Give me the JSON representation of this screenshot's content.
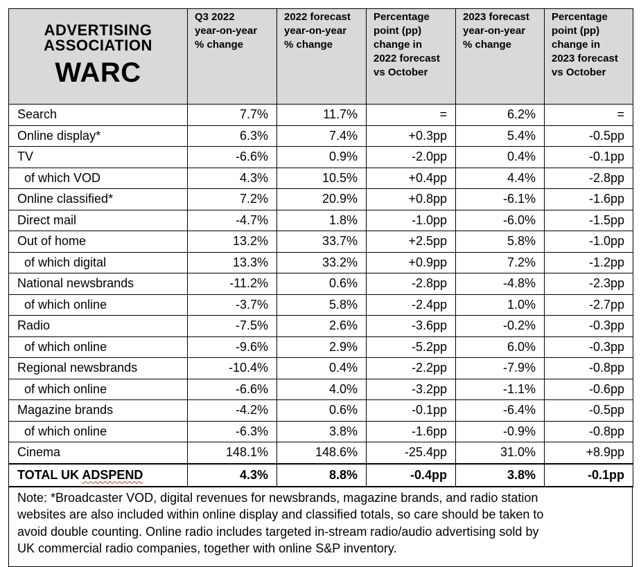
{
  "logo": {
    "line1": "ADVERTISING",
    "line2": "ASSOCIATION",
    "line3": "WARC"
  },
  "headers": [
    "Q3 2022 year-on-year % change",
    "2022 forecast year-on-year % change",
    "Percentage point (pp) change in 2022 forecast vs October",
    "2023 forecast year-on-year % change",
    "Percentage point (pp) change in 2023 forecast vs October"
  ],
  "header_lines": [
    [
      "Q3 2022",
      "year-on-year",
      "% change"
    ],
    [
      "2022 forecast",
      "year-on-year",
      "% change"
    ],
    [
      "Percentage",
      "point (pp)",
      "change in",
      "2022 forecast",
      "vs October"
    ],
    [
      "2023 forecast",
      "year-on-year",
      "% change"
    ],
    [
      "Percentage",
      "point (pp)",
      "change in",
      "2023 forecast",
      "vs October"
    ]
  ],
  "rows": [
    {
      "label": "Search",
      "sub": false,
      "values": [
        "7.7%",
        "11.7%",
        "=",
        "6.2%",
        "="
      ]
    },
    {
      "label": "Online display*",
      "sub": false,
      "values": [
        "6.3%",
        "7.4%",
        "+0.3pp",
        "5.4%",
        "-0.5pp"
      ]
    },
    {
      "label": "TV",
      "sub": false,
      "values": [
        "-6.6%",
        "0.9%",
        "-2.0pp",
        "0.4%",
        "-0.1pp"
      ]
    },
    {
      "label": "of which VOD",
      "sub": true,
      "values": [
        "4.3%",
        "10.5%",
        "+0.4pp",
        "4.4%",
        "-2.8pp"
      ]
    },
    {
      "label": "Online classified*",
      "sub": false,
      "values": [
        "7.2%",
        "20.9%",
        "+0.8pp",
        "-6.1%",
        "-1.6pp"
      ]
    },
    {
      "label": "Direct mail",
      "sub": false,
      "values": [
        "-4.7%",
        "1.8%",
        "-1.0pp",
        "-6.0%",
        "-1.5pp"
      ]
    },
    {
      "label": "Out of home",
      "sub": false,
      "values": [
        "13.2%",
        "33.7%",
        "+2.5pp",
        "5.8%",
        "-1.0pp"
      ]
    },
    {
      "label": "of which digital",
      "sub": true,
      "values": [
        "13.3%",
        "33.2%",
        "+0.9pp",
        "7.2%",
        "-1.2pp"
      ]
    },
    {
      "label": "National newsbrands",
      "sub": false,
      "values": [
        "-11.2%",
        "0.6%",
        "-2.8pp",
        "-4.8%",
        "-2.3pp"
      ]
    },
    {
      "label": "of which online",
      "sub": true,
      "values": [
        "-3.7%",
        "5.8%",
        "-2.4pp",
        "1.0%",
        "-2.7pp"
      ]
    },
    {
      "label": "Radio",
      "sub": false,
      "values": [
        "-7.5%",
        "2.6%",
        "-3.6pp",
        "-0.2%",
        "-0.3pp"
      ]
    },
    {
      "label": "of which online",
      "sub": true,
      "values": [
        "-9.6%",
        "2.9%",
        "-5.2pp",
        "6.0%",
        "-0.3pp"
      ]
    },
    {
      "label": "Regional newsbrands",
      "sub": false,
      "values": [
        "-10.4%",
        "0.4%",
        "-2.2pp",
        "-7.9%",
        "-0.8pp"
      ]
    },
    {
      "label": "of which online",
      "sub": true,
      "values": [
        "-6.6%",
        "4.0%",
        "-3.2pp",
        "-1.1%",
        "-0.6pp"
      ]
    },
    {
      "label": "Magazine brands",
      "sub": false,
      "values": [
        "-4.2%",
        "0.6%",
        "-0.1pp",
        "-6.4%",
        "-0.5pp"
      ]
    },
    {
      "label": "of which online",
      "sub": true,
      "values": [
        "-6.3%",
        "3.8%",
        "-1.6pp",
        "-0.9%",
        "-0.8pp"
      ]
    },
    {
      "label": "Cinema",
      "sub": false,
      "values": [
        "148.1%",
        "148.6%",
        "-25.4pp",
        "31.0%",
        "+8.9pp"
      ]
    }
  ],
  "total": {
    "label_prefix": "TOTAL UK ",
    "label_flagged": "ADSPEND",
    "values": [
      "4.3%",
      "8.8%",
      "-0.4pp",
      "3.8%",
      "-0.1pp"
    ]
  },
  "note_lines": [
    "Note: *Broadcaster VOD, digital revenues for newsbrands, magazine brands, and radio station",
    "websites are also included within online display and classified totals, so care should be taken to",
    "avoid double counting. Online radio includes targeted in-stream radio/audio advertising sold by",
    "UK commercial radio companies, together with online S&P inventory."
  ],
  "colors": {
    "header_bg": "#d9d9d9",
    "spellcheck_underline": "#d32f2f"
  }
}
